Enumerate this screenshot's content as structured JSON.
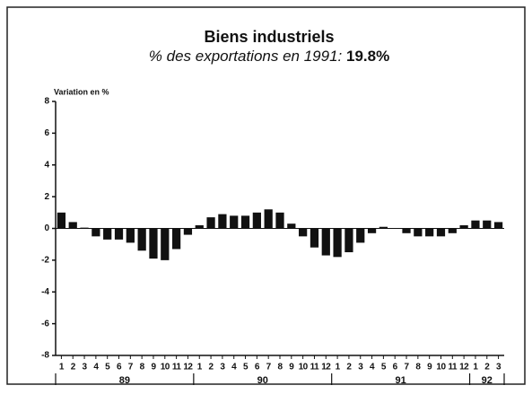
{
  "chart_data": {
    "type": "bar",
    "title": "Biens industriels",
    "subtitle": "% des exportations en 1991:",
    "subtitle_value": "19.8%",
    "y_label": "Variation en %",
    "categories": [
      "1",
      "2",
      "3",
      "4",
      "5",
      "6",
      "7",
      "8",
      "9",
      "10",
      "11",
      "12",
      "1",
      "2",
      "3",
      "4",
      "5",
      "6",
      "7",
      "8",
      "9",
      "10",
      "11",
      "12",
      "1",
      "2",
      "3",
      "4",
      "5",
      "6",
      "7",
      "8",
      "9",
      "10",
      "11",
      "12",
      "1",
      "2",
      "3"
    ],
    "groups": [
      {
        "label": "89",
        "months": 12
      },
      {
        "label": "90",
        "months": 12
      },
      {
        "label": "91",
        "months": 12
      },
      {
        "label": "92",
        "months": 3
      }
    ],
    "values": [
      1.0,
      0.4,
      0.05,
      -0.5,
      -0.7,
      -0.7,
      -0.9,
      -1.4,
      -1.9,
      -2.0,
      -1.3,
      -0.4,
      0.2,
      0.7,
      0.9,
      0.8,
      0.8,
      1.0,
      1.2,
      1.0,
      0.3,
      -0.5,
      -1.2,
      -1.7,
      -1.8,
      -1.5,
      -0.9,
      -0.3,
      0.1,
      0.0,
      -0.3,
      -0.5,
      -0.5,
      -0.5,
      -0.3,
      0.2,
      0.5,
      0.5,
      0.4
    ],
    "color": "#111111",
    "ylim": [
      -8,
      8
    ],
    "yticks": [
      -8,
      -6,
      -4,
      -2,
      0,
      2,
      4,
      6,
      8
    ],
    "grid": false
  }
}
